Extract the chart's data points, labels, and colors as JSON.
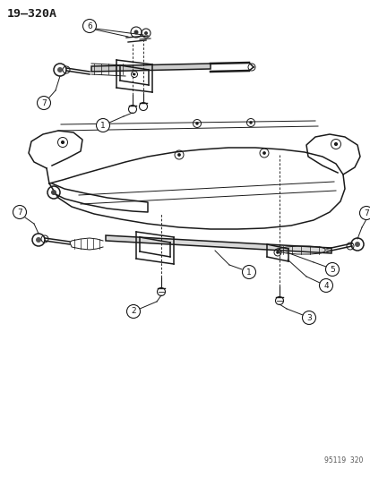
{
  "title": "19–320A",
  "watermark": "95119  320",
  "bg_color": "#ffffff",
  "line_color": "#1a1a1a",
  "fig_width": 4.14,
  "fig_height": 5.33,
  "dpi": 100
}
